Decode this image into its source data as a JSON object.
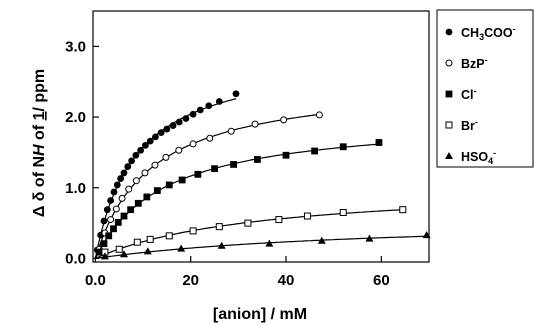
{
  "chart_data": {
    "type": "scatter",
    "xlabel": "[anion] / mM",
    "ylabel": "Δ δ of NH of 1/ ppm",
    "ylabel_parts": [
      "Δ δ of N",
      "H",
      " of ",
      "1",
      "/ ppm"
    ],
    "xlim": [
      -0.5,
      70
    ],
    "ylim": [
      -0.05,
      3.5
    ],
    "x_ticks": [
      0,
      20,
      40,
      60
    ],
    "x_tick_labels": [
      "0.0",
      "20",
      "40",
      "60"
    ],
    "y_ticks": [
      0,
      1,
      2,
      3
    ],
    "y_tick_labels": [
      "0.0",
      "1.0",
      "2.0",
      "3.0"
    ],
    "legend_position": "right",
    "series": [
      {
        "name": "CH3COO-",
        "legend": {
          "base": "CH",
          "sub": "3",
          "mid": "COO",
          "sup": "-"
        },
        "marker": "circle-filled",
        "x": [
          0.4,
          1.1,
          1.8,
          2.5,
          3.2,
          3.9,
          4.6,
          5.3,
          6.0,
          6.8,
          7.6,
          8.5,
          9.5,
          10.5,
          11.5,
          12.6,
          13.8,
          15.0,
          16.3,
          17.6,
          19.0,
          20.5,
          22.0,
          23.8,
          26.0,
          29.5
        ],
        "y": [
          0.12,
          0.33,
          0.53,
          0.69,
          0.82,
          0.94,
          1.04,
          1.13,
          1.21,
          1.3,
          1.38,
          1.46,
          1.53,
          1.6,
          1.66,
          1.72,
          1.78,
          1.83,
          1.88,
          1.93,
          1.98,
          2.04,
          2.1,
          2.16,
          2.22,
          2.33
        ]
      },
      {
        "name": "BzP-",
        "legend": {
          "base": "BzP",
          "sub": "",
          "mid": "",
          "sup": "-"
        },
        "marker": "circle-open",
        "x": [
          0.8,
          2.0,
          3.2,
          4.4,
          5.6,
          7.0,
          8.6,
          10.4,
          12.5,
          14.8,
          17.5,
          20.5,
          24.0,
          28.5,
          33.5,
          39.5,
          47.0
        ],
        "y": [
          0.13,
          0.36,
          0.55,
          0.7,
          0.85,
          0.98,
          1.1,
          1.21,
          1.32,
          1.43,
          1.53,
          1.62,
          1.7,
          1.8,
          1.9,
          1.96,
          2.03
        ]
      },
      {
        "name": "Cl-",
        "legend": {
          "base": "Cl",
          "sub": "",
          "mid": "",
          "sup": "-"
        },
        "marker": "square-filled",
        "x": [
          0.8,
          1.8,
          2.8,
          3.8,
          4.8,
          6.0,
          7.4,
          9.0,
          10.8,
          13.0,
          15.5,
          18.2,
          21.5,
          25.0,
          29.0,
          34.0,
          40.0,
          46.0,
          52.0,
          59.5
        ],
        "y": [
          0.09,
          0.21,
          0.32,
          0.42,
          0.51,
          0.6,
          0.69,
          0.78,
          0.87,
          0.96,
          1.04,
          1.11,
          1.19,
          1.27,
          1.33,
          1.4,
          1.46,
          1.52,
          1.58,
          1.64
        ]
      },
      {
        "name": "Br-",
        "legend": {
          "base": "Br",
          "sub": "",
          "mid": "",
          "sup": "-"
        },
        "marker": "square-open",
        "x": [
          2.0,
          5.0,
          8.8,
          11.5,
          15.5,
          20.5,
          26.0,
          32.0,
          38.5,
          44.5,
          52.0,
          64.5
        ],
        "y": [
          0.09,
          0.13,
          0.23,
          0.27,
          0.32,
          0.39,
          0.45,
          0.5,
          0.55,
          0.6,
          0.65,
          0.69
        ]
      },
      {
        "name": "HSO4-",
        "legend": {
          "base": "HSO",
          "sub": "4",
          "mid": "",
          "sup": "-"
        },
        "marker": "triangle-filled",
        "x": [
          2.0,
          6.0,
          11.0,
          18.0,
          26.5,
          36.5,
          47.5,
          57.5,
          69.5
        ],
        "y": [
          0.03,
          0.06,
          0.1,
          0.14,
          0.18,
          0.21,
          0.25,
          0.28,
          0.33
        ]
      }
    ]
  }
}
